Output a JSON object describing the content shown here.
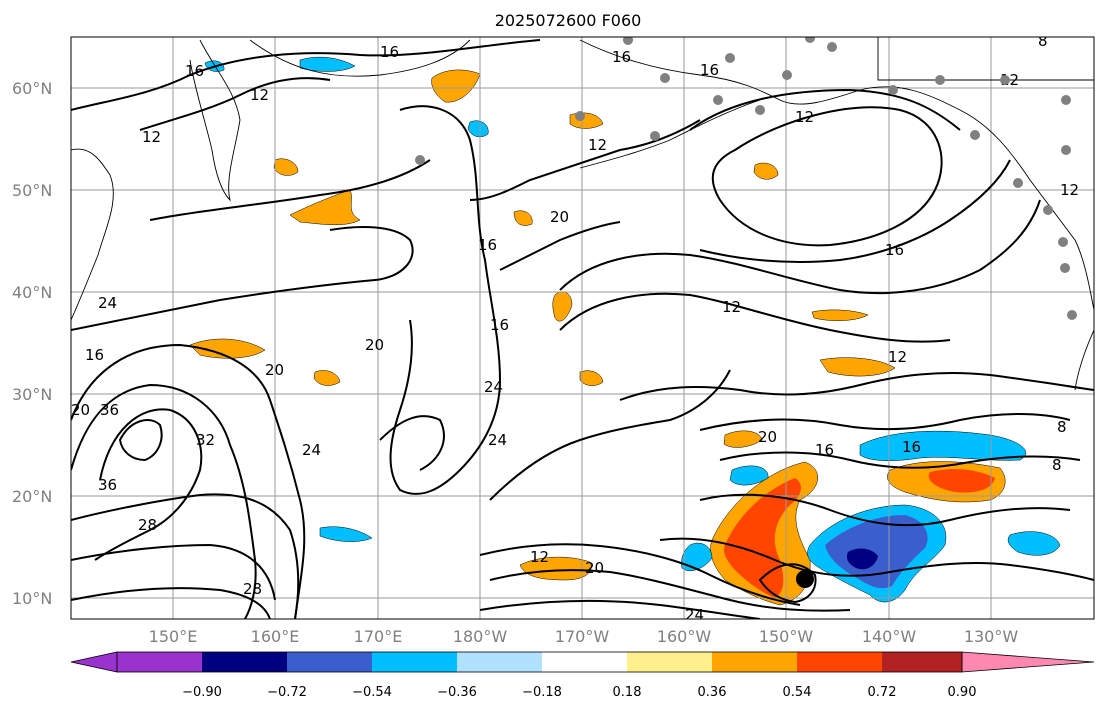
{
  "title": "2025072600 F060",
  "lat_labels": [
    "60°N",
    "50°N",
    "40°N",
    "30°N",
    "20°N",
    "10°N"
  ],
  "lon_labels": [
    "150°E",
    "160°E",
    "170°E",
    "180°W",
    "170°W",
    "160°W",
    "150°W",
    "140°W",
    "130°W"
  ],
  "colorbar": {
    "tick_labels": [
      "−0.90",
      "−0.72",
      "−0.54",
      "−0.36",
      "−0.18",
      "0.18",
      "0.36",
      "0.54",
      "0.72",
      "0.90"
    ],
    "colors": [
      "#9a32cd",
      "#000080",
      "#3a5fcd",
      "#00bfff",
      "#b0e2ff",
      "#ffffff",
      "#fff08c",
      "#ffa500",
      "#ff4500",
      "#b22222",
      "#ff88b0"
    ]
  },
  "colors": {
    "orange": "#ffa500",
    "red": "#ff4500",
    "blue": "#3a5fcd",
    "navy": "#000080",
    "sky": "#00bfff",
    "grid": "#9a9a9a",
    "gray_dot": "#808080"
  },
  "contour_labels": [
    {
      "text": "16"
    },
    {
      "text": "16"
    },
    {
      "text": "12"
    },
    {
      "text": "12"
    },
    {
      "text": "16"
    },
    {
      "text": "16"
    },
    {
      "text": "12"
    },
    {
      "text": "12"
    },
    {
      "text": "12"
    },
    {
      "text": "16"
    },
    {
      "text": "12"
    },
    {
      "text": "12"
    },
    {
      "text": "20"
    },
    {
      "text": "16"
    },
    {
      "text": "24"
    },
    {
      "text": "16"
    },
    {
      "text": "20"
    },
    {
      "text": "16"
    },
    {
      "text": "20"
    },
    {
      "text": "20"
    },
    {
      "text": "36"
    },
    {
      "text": "32"
    },
    {
      "text": "36"
    },
    {
      "text": "24"
    },
    {
      "text": "28"
    },
    {
      "text": "28"
    },
    {
      "text": "24"
    },
    {
      "text": "24"
    },
    {
      "text": "20"
    },
    {
      "text": "16"
    },
    {
      "text": "16"
    },
    {
      "text": "12"
    },
    {
      "text": "20"
    },
    {
      "text": "8"
    },
    {
      "text": "8"
    },
    {
      "text": "24"
    },
    {
      "text": "12"
    },
    {
      "text": "8"
    }
  ]
}
